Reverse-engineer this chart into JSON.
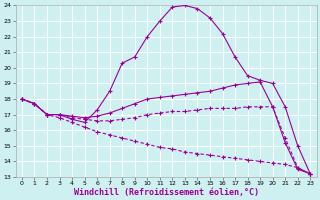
{
  "title": "",
  "xlabel": "Windchill (Refroidissement éolien,°C)",
  "ylabel": "",
  "bg_color": "#cff0f0",
  "line_color": "#990099",
  "grid_color": "#ffffff",
  "xlim": [
    -0.5,
    23.5
  ],
  "ylim": [
    13,
    24
  ],
  "xticks": [
    0,
    1,
    2,
    3,
    4,
    5,
    6,
    7,
    8,
    9,
    10,
    11,
    12,
    13,
    14,
    15,
    16,
    17,
    18,
    19,
    20,
    21,
    22,
    23
  ],
  "yticks": [
    13,
    14,
    15,
    16,
    17,
    18,
    19,
    20,
    21,
    22,
    23,
    24
  ],
  "line1_x": [
    0,
    1,
    2,
    3,
    4,
    5,
    6,
    7,
    8,
    9,
    10,
    11,
    12,
    13,
    14,
    15,
    16,
    17,
    18,
    19,
    20,
    21,
    22,
    23
  ],
  "line1_y": [
    18.0,
    17.7,
    17.0,
    17.0,
    16.7,
    16.5,
    17.3,
    18.5,
    20.3,
    20.7,
    22.0,
    23.0,
    23.9,
    24.0,
    23.8,
    23.2,
    22.2,
    20.7,
    19.5,
    19.2,
    19.0,
    17.5,
    15.0,
    13.2
  ],
  "line2_x": [
    0,
    1,
    2,
    3,
    4,
    5,
    6,
    7,
    8,
    9,
    10,
    11,
    12,
    13,
    14,
    15,
    16,
    17,
    18,
    19,
    20,
    21,
    22,
    23
  ],
  "line2_y": [
    18.0,
    17.7,
    17.0,
    17.0,
    16.9,
    16.8,
    16.9,
    17.1,
    17.4,
    17.7,
    18.0,
    18.1,
    18.2,
    18.3,
    18.4,
    18.5,
    18.7,
    18.9,
    19.0,
    19.1,
    17.5,
    15.2,
    13.5,
    13.2
  ],
  "line3_x": [
    0,
    1,
    2,
    3,
    4,
    5,
    6,
    7,
    8,
    9,
    10,
    11,
    12,
    13,
    14,
    15,
    16,
    17,
    18,
    19,
    20,
    21,
    22,
    23
  ],
  "line3_y": [
    18.0,
    17.7,
    17.0,
    17.0,
    16.8,
    16.7,
    16.6,
    16.6,
    16.7,
    16.8,
    17.0,
    17.1,
    17.2,
    17.2,
    17.3,
    17.4,
    17.4,
    17.4,
    17.5,
    17.5,
    17.5,
    15.5,
    13.6,
    13.2
  ],
  "line4_x": [
    0,
    1,
    2,
    3,
    4,
    5,
    6,
    7,
    8,
    9,
    10,
    11,
    12,
    13,
    14,
    15,
    16,
    17,
    18,
    19,
    20,
    21,
    22,
    23
  ],
  "line4_y": [
    18.0,
    17.7,
    17.0,
    16.8,
    16.5,
    16.2,
    15.9,
    15.7,
    15.5,
    15.3,
    15.1,
    14.9,
    14.8,
    14.6,
    14.5,
    14.4,
    14.3,
    14.2,
    14.1,
    14.0,
    13.9,
    13.8,
    13.6,
    13.2
  ],
  "marker": "+",
  "markersize": 3,
  "markeredgewidth": 0.8,
  "linewidth": 0.8,
  "tick_fontsize": 4.5,
  "xlabel_fontsize": 6.0,
  "figwidth": 3.2,
  "figheight": 2.0,
  "dpi": 100
}
